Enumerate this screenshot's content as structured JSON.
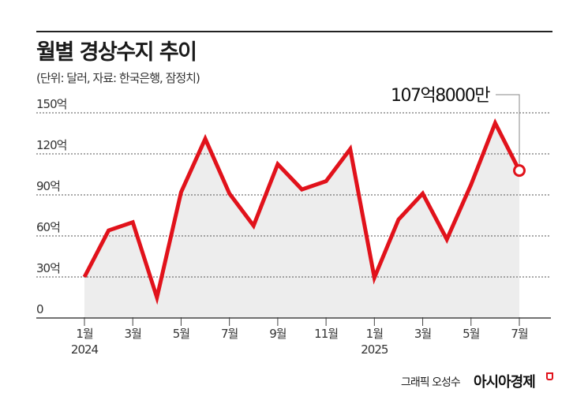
{
  "header": {
    "title": "월별 경상수지 추이",
    "subtitle": "(단위: 달러, 자료: 한국은행, 잠정치)"
  },
  "footer": {
    "credit": "그래픽 오성수",
    "brand": "아시아경제"
  },
  "colors": {
    "line": "#e1121b",
    "area": "#ededed",
    "grid": "#555555"
  },
  "chart_data": {
    "type": "area",
    "title": "월별 경상수지 추이",
    "x": [
      "2024-01",
      "2024-02",
      "2024-03",
      "2024-04",
      "2024-05",
      "2024-06",
      "2024-07",
      "2024-08",
      "2024-09",
      "2024-10",
      "2024-11",
      "2024-12",
      "2025-01",
      "2025-02",
      "2025-03",
      "2025-04",
      "2025-05",
      "2025-06",
      "2025-07"
    ],
    "values": [
      30,
      64,
      70,
      15,
      92,
      131,
      91,
      67.5,
      112.5,
      94,
      100,
      123.5,
      29.5,
      72,
      91,
      57.5,
      97.5,
      142.5,
      107.8
    ],
    "unit": "억 달러",
    "ylim": [
      0,
      150
    ],
    "yticks": [
      {
        "value": 0,
        "label": "0"
      },
      {
        "value": 30,
        "label": "30억"
      },
      {
        "value": 60,
        "label": "60억"
      },
      {
        "value": 90,
        "label": "90억"
      },
      {
        "value": 120,
        "label": "120억"
      },
      {
        "value": 150,
        "label": "150억"
      }
    ],
    "xticks": [
      {
        "index": 0,
        "label": "1월",
        "year": "2024"
      },
      {
        "index": 2,
        "label": "3월"
      },
      {
        "index": 4,
        "label": "5월"
      },
      {
        "index": 6,
        "label": "7월"
      },
      {
        "index": 8,
        "label": "9월"
      },
      {
        "index": 10,
        "label": "11월"
      },
      {
        "index": 12,
        "label": "1월",
        "year": "2025"
      },
      {
        "index": 14,
        "label": "3월"
      },
      {
        "index": 16,
        "label": "5월"
      },
      {
        "index": 18,
        "label": "7월"
      }
    ],
    "annotation": {
      "index": 18,
      "label": "107억8000만"
    },
    "grid": true,
    "legend": "none"
  }
}
